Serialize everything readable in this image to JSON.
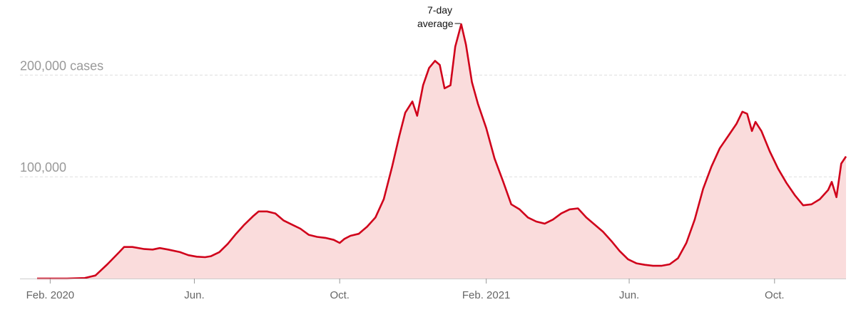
{
  "chart_data": {
    "type": "area",
    "y_unit_label": "cases",
    "ylim": [
      0,
      250000
    ],
    "y_ticks": [
      {
        "value": 200000,
        "label": "200,000 cases"
      },
      {
        "value": 100000,
        "label": "100,000"
      }
    ],
    "x_ticks": [
      {
        "date": "2020-02-01",
        "label": "Feb. 2020"
      },
      {
        "date": "2020-06-01",
        "label": "Jun."
      },
      {
        "date": "2020-10-01",
        "label": "Oct."
      },
      {
        "date": "2021-02-01",
        "label": "Feb. 2021"
      },
      {
        "date": "2021-06-01",
        "label": "Jun."
      },
      {
        "date": "2021-10-01",
        "label": "Oct."
      }
    ],
    "xlim": [
      "2020-01-21",
      "2021-11-30"
    ],
    "grid": true,
    "annotation": {
      "line1": "7-day",
      "line2": "average",
      "date": "2021-01-11"
    },
    "colors": {
      "line": "#d0021b",
      "fill": "#fadcdc",
      "grid": "#dddddd",
      "axis_text": "#999999",
      "tick_text": "#666666"
    },
    "series": [
      {
        "points": [
          [
            "2020-01-21",
            0
          ],
          [
            "2020-02-15",
            0
          ],
          [
            "2020-03-01",
            500
          ],
          [
            "2020-03-10",
            3000
          ],
          [
            "2020-03-20",
            14000
          ],
          [
            "2020-03-30",
            26000
          ],
          [
            "2020-04-03",
            31000
          ],
          [
            "2020-04-10",
            31000
          ],
          [
            "2020-04-20",
            29000
          ],
          [
            "2020-04-27",
            28500
          ],
          [
            "2020-05-03",
            30000
          ],
          [
            "2020-05-10",
            28500
          ],
          [
            "2020-05-20",
            26000
          ],
          [
            "2020-05-27",
            23000
          ],
          [
            "2020-06-03",
            21500
          ],
          [
            "2020-06-10",
            21000
          ],
          [
            "2020-06-15",
            22000
          ],
          [
            "2020-06-22",
            26000
          ],
          [
            "2020-06-29",
            34000
          ],
          [
            "2020-07-06",
            44000
          ],
          [
            "2020-07-13",
            53000
          ],
          [
            "2020-07-20",
            61000
          ],
          [
            "2020-07-25",
            66000
          ],
          [
            "2020-08-01",
            66000
          ],
          [
            "2020-08-08",
            64000
          ],
          [
            "2020-08-15",
            57000
          ],
          [
            "2020-08-22",
            53000
          ],
          [
            "2020-08-29",
            49000
          ],
          [
            "2020-09-05",
            43000
          ],
          [
            "2020-09-12",
            41000
          ],
          [
            "2020-09-19",
            40000
          ],
          [
            "2020-09-26",
            38000
          ],
          [
            "2020-10-01",
            35000
          ],
          [
            "2020-10-05",
            39000
          ],
          [
            "2020-10-10",
            42000
          ],
          [
            "2020-10-17",
            44000
          ],
          [
            "2020-10-24",
            51000
          ],
          [
            "2020-10-31",
            60000
          ],
          [
            "2020-11-07",
            78000
          ],
          [
            "2020-11-14",
            110000
          ],
          [
            "2020-11-20",
            140000
          ],
          [
            "2020-11-25",
            163000
          ],
          [
            "2020-12-01",
            174000
          ],
          [
            "2020-12-05",
            160000
          ],
          [
            "2020-12-10",
            190000
          ],
          [
            "2020-12-15",
            207000
          ],
          [
            "2020-12-20",
            214000
          ],
          [
            "2020-12-24",
            210000
          ],
          [
            "2020-12-28",
            187000
          ],
          [
            "2021-01-02",
            190000
          ],
          [
            "2021-01-06",
            228000
          ],
          [
            "2021-01-11",
            250000
          ],
          [
            "2021-01-15",
            230000
          ],
          [
            "2021-01-20",
            193000
          ],
          [
            "2021-01-25",
            172000
          ],
          [
            "2021-02-01",
            148000
          ],
          [
            "2021-02-08",
            118000
          ],
          [
            "2021-02-15",
            96000
          ],
          [
            "2021-02-22",
            73000
          ],
          [
            "2021-03-01",
            68000
          ],
          [
            "2021-03-08",
            60000
          ],
          [
            "2021-03-15",
            56000
          ],
          [
            "2021-03-22",
            54000
          ],
          [
            "2021-03-29",
            58000
          ],
          [
            "2021-04-05",
            64000
          ],
          [
            "2021-04-12",
            68000
          ],
          [
            "2021-04-19",
            69000
          ],
          [
            "2021-04-26",
            60000
          ],
          [
            "2021-05-03",
            53000
          ],
          [
            "2021-05-10",
            46000
          ],
          [
            "2021-05-17",
            37000
          ],
          [
            "2021-05-24",
            27000
          ],
          [
            "2021-05-31",
            19000
          ],
          [
            "2021-06-07",
            15000
          ],
          [
            "2021-06-14",
            13500
          ],
          [
            "2021-06-21",
            12500
          ],
          [
            "2021-06-28",
            12500
          ],
          [
            "2021-07-05",
            14000
          ],
          [
            "2021-07-12",
            20000
          ],
          [
            "2021-07-19",
            35000
          ],
          [
            "2021-07-26",
            58000
          ],
          [
            "2021-08-02",
            88000
          ],
          [
            "2021-08-09",
            110000
          ],
          [
            "2021-08-16",
            128000
          ],
          [
            "2021-08-23",
            140000
          ],
          [
            "2021-08-30",
            152000
          ],
          [
            "2021-09-04",
            164000
          ],
          [
            "2021-09-08",
            162000
          ],
          [
            "2021-09-12",
            145000
          ],
          [
            "2021-09-15",
            154000
          ],
          [
            "2021-09-20",
            145000
          ],
          [
            "2021-09-27",
            125000
          ],
          [
            "2021-10-04",
            108000
          ],
          [
            "2021-10-11",
            94000
          ],
          [
            "2021-10-18",
            82000
          ],
          [
            "2021-10-25",
            72000
          ],
          [
            "2021-11-01",
            73000
          ],
          [
            "2021-11-08",
            78000
          ],
          [
            "2021-11-15",
            87000
          ],
          [
            "2021-11-18",
            95000
          ],
          [
            "2021-11-22",
            80000
          ],
          [
            "2021-11-26",
            113000
          ],
          [
            "2021-11-30",
            120000
          ]
        ]
      }
    ]
  }
}
